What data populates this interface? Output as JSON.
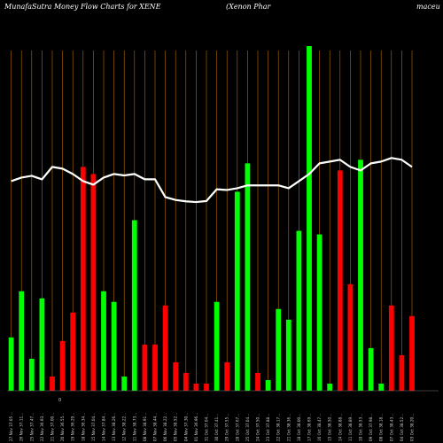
{
  "chart_data": {
    "type": "bar",
    "title_left": "MunafaSutra  Money Flow  Charts for XENE",
    "title_middle": "(Xenon  Phar",
    "title_right": "maceu",
    "zero_label": "0",
    "colors": {
      "up": "#00ff00",
      "down": "#ff0000",
      "line": "#ffffff",
      "grid": "#b36b00",
      "background": "#000000"
    },
    "ylim": [
      0,
      100
    ],
    "categories": [
      "27 Nov 37.05 ...",
      "26 Nov 37.11...",
      "25 Nov 37.47...",
      "22 Nov 36.93...",
      "21 Nov 37.00...",
      "20 Nov 36.55...",
      "19 Nov 36.29...",
      "18 Nov 36.34...",
      "15 Nov 37.04...",
      "14 Nov 37.84...",
      "13 Nov 38.26...",
      "12 Nov 38.22...",
      "11 Nov 38.73...",
      "08 Nov 38.91...",
      "07 Nov 38.44...",
      "06 Nov 38.22...",
      "05 Nov 38.52...",
      "04 Nov 37.30...",
      "01 Nov 36.96...",
      "31 Oct 37.04...",
      "30 Oct 37.41...",
      "29 Oct 37.55...",
      "28 Oct 37.67...",
      "25 Oct 37.04...",
      "24 Oct 37.50...",
      "23 Oct 37.88...",
      "22 Oct 38.17...",
      "21 Oct 38.36...",
      "18 Oct 38.00...",
      "17 Oct 38.69...",
      "16 Oct 38.47...",
      "15 Oct 38.50...",
      "14 Oct 38.88...",
      "11 Oct 38.89...",
      "10 Oct 38.53...",
      "09 Oct 37.98...",
      "08 Oct 38.18...",
      "07 Oct 38.43...",
      "04 Oct 38.52...",
      "03 Oct 38.20..."
    ],
    "series": [
      {
        "values": [
          15,
          28,
          9,
          26,
          4,
          14,
          22,
          63,
          61,
          28,
          25,
          4,
          48,
          13,
          13,
          24,
          8,
          5,
          2,
          2,
          25,
          8,
          56,
          64,
          5,
          3,
          23,
          20,
          45,
          97,
          44,
          2,
          62,
          30,
          65,
          12,
          2,
          24,
          10,
          21
        ],
        "directions": [
          "up",
          "up",
          "up",
          "up",
          "down",
          "down",
          "down",
          "down",
          "down",
          "up",
          "up",
          "up",
          "up",
          "down",
          "down",
          "down",
          "down",
          "down",
          "down",
          "down",
          "up",
          "down",
          "up",
          "up",
          "down",
          "up",
          "up",
          "up",
          "up",
          "up",
          "up",
          "up",
          "down",
          "down",
          "up",
          "up",
          "up",
          "down",
          "down",
          "down"
        ]
      },
      {
        "values": [
          59,
          60,
          60.5,
          59.5,
          63,
          62.5,
          61,
          59,
          58,
          60,
          61,
          60.6,
          61,
          59.5,
          59.5,
          54.5,
          53.7,
          53.3,
          53.1,
          53.4,
          56.7,
          56.5,
          57,
          57.8,
          57.8,
          57.8,
          57.8,
          57,
          59,
          61,
          64,
          64.5,
          65,
          63,
          62,
          64,
          64.5,
          65.5,
          65,
          63
        ]
      }
    ]
  }
}
